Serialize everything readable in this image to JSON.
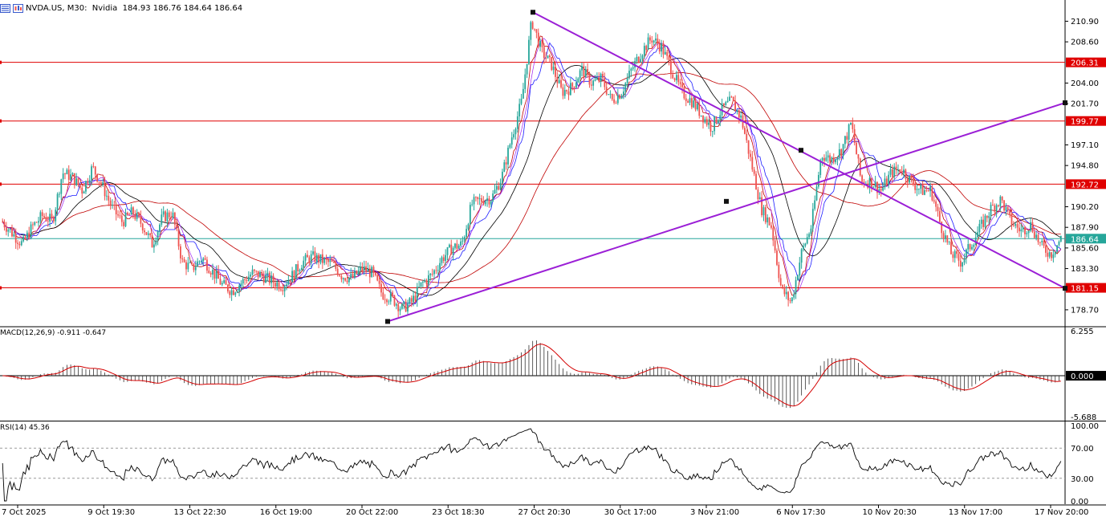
{
  "header": {
    "symbol_title": "NVDA.US, M30:  Nvidia  184.93 186.76 184.64 186.64"
  },
  "main_chart": {
    "price_min": 176.9,
    "price_max": 213.0,
    "price_ticks": [
      "210.90",
      "208.60",
      "204.00",
      "201.70",
      "197.10",
      "194.80",
      "190.20",
      "187.90",
      "185.60",
      "183.30",
      "178.70"
    ],
    "current_price": "186.64",
    "hlines": [
      {
        "label": "206.31",
        "value": 206.31
      },
      {
        "label": "199.77",
        "value": 199.77
      },
      {
        "label": "192.72",
        "value": 192.72
      },
      {
        "label": "181.15",
        "value": 181.15
      }
    ],
    "colors": {
      "up": "#26a69a",
      "down": "#ef5350",
      "hline": "#e00000",
      "trend": "#9b1fd6",
      "ma_black": "#000000",
      "ma_red": "#c00000",
      "ma_blue": "#1a1aff",
      "ma_violet": "#a020f0",
      "current": "#26a69a"
    }
  },
  "macd": {
    "title": "MACD(12,26,9) -0.911 -0.647",
    "ticks": [
      "6.255",
      "0.000",
      "-5.688"
    ]
  },
  "rsi": {
    "title": "RSI(14) 45.36",
    "ticks": [
      "100.00",
      "70.00",
      "30.00",
      "0.00"
    ]
  },
  "time_axis": {
    "labels": [
      "7 Oct 2025",
      "9 Oct 19:30",
      "13 Oct 22:30",
      "16 Oct 19:00",
      "20 Oct 22:00",
      "23 Oct 18:30",
      "27 Oct 20:30",
      "30 Oct 17:00",
      "3 Nov 21:00",
      "6 Nov 17:30",
      "10 Nov 20:30",
      "13 Nov 17:00",
      "17 Nov 20:00"
    ]
  },
  "chart_data": {
    "type": "candlestick",
    "title": "NVDA.US, M30: Nvidia",
    "ohlc_last": {
      "open": 184.93,
      "high": 186.76,
      "low": 184.64,
      "close": 186.64
    },
    "x_labels": [
      "7 Oct 2025",
      "9 Oct 19:30",
      "13 Oct 22:30",
      "16 Oct 19:00",
      "20 Oct 22:00",
      "23 Oct 18:30",
      "27 Oct 20:30",
      "30 Oct 17:00",
      "3 Nov 21:00",
      "6 Nov 17:30",
      "10 Nov 20:30",
      "13 Nov 17:00",
      "17 Nov 20:00"
    ],
    "close_path": [
      188.5,
      187.2,
      186.0,
      188.0,
      189.2,
      188.6,
      194.0,
      193.5,
      192.0,
      194.6,
      192.5,
      190.0,
      188.5,
      189.6,
      188.2,
      186.0,
      189.0,
      189.5,
      184.0,
      183.3,
      184.5,
      183.0,
      181.5,
      180.8,
      181.8,
      182.8,
      182.5,
      181.9,
      181.4,
      182.5,
      184.0,
      184.6,
      184.2,
      183.8,
      182.5,
      182.2,
      183.3,
      182.8,
      180.5,
      180.0,
      178.8,
      179.6,
      181.6,
      182.6,
      184.4,
      185.6,
      186.0,
      190.5,
      191.0,
      191.2,
      193.5,
      198.0,
      202.0,
      211.0,
      207.5,
      206.0,
      203.0,
      203.5,
      205.5,
      204.0,
      204.5,
      202.0,
      203.0,
      205.5,
      207.5,
      209.0,
      208.0,
      205.5,
      203.0,
      202.0,
      200.5,
      199.0,
      201.0,
      202.0,
      200.0,
      195.0,
      190.0,
      188.0,
      181.0,
      179.5,
      185.0,
      188.0,
      196.0,
      195.5,
      196.5,
      199.5,
      193.0,
      193.0,
      192.0,
      194.0,
      194.5,
      193.0,
      192.0,
      192.0,
      188.0,
      185.0,
      184.0,
      186.0,
      188.0,
      190.0,
      191.0,
      188.5,
      187.5,
      188.2,
      185.8,
      184.9,
      186.64
    ],
    "horizontal_levels": [
      206.31,
      199.77,
      192.72,
      181.15
    ],
    "trendlines": [
      {
        "from": {
          "x": "22 Oct",
          "y": 177.4
        },
        "to": {
          "x": "17 Nov",
          "y": 201.8
        }
      },
      {
        "from": {
          "x": "28 Oct",
          "y": 211.9
        },
        "to": {
          "x": "17 Nov",
          "y": 181.1
        }
      }
    ],
    "macd": {
      "name": "MACD(12,26,9)",
      "main": -0.911,
      "signal": -0.647,
      "range": [
        -5.688,
        6.255
      ]
    },
    "rsi": {
      "name": "RSI(14)",
      "value": 45.36,
      "levels": [
        70,
        30
      ],
      "range": [
        0,
        100
      ]
    },
    "ylim": [
      176.9,
      213.0
    ]
  }
}
